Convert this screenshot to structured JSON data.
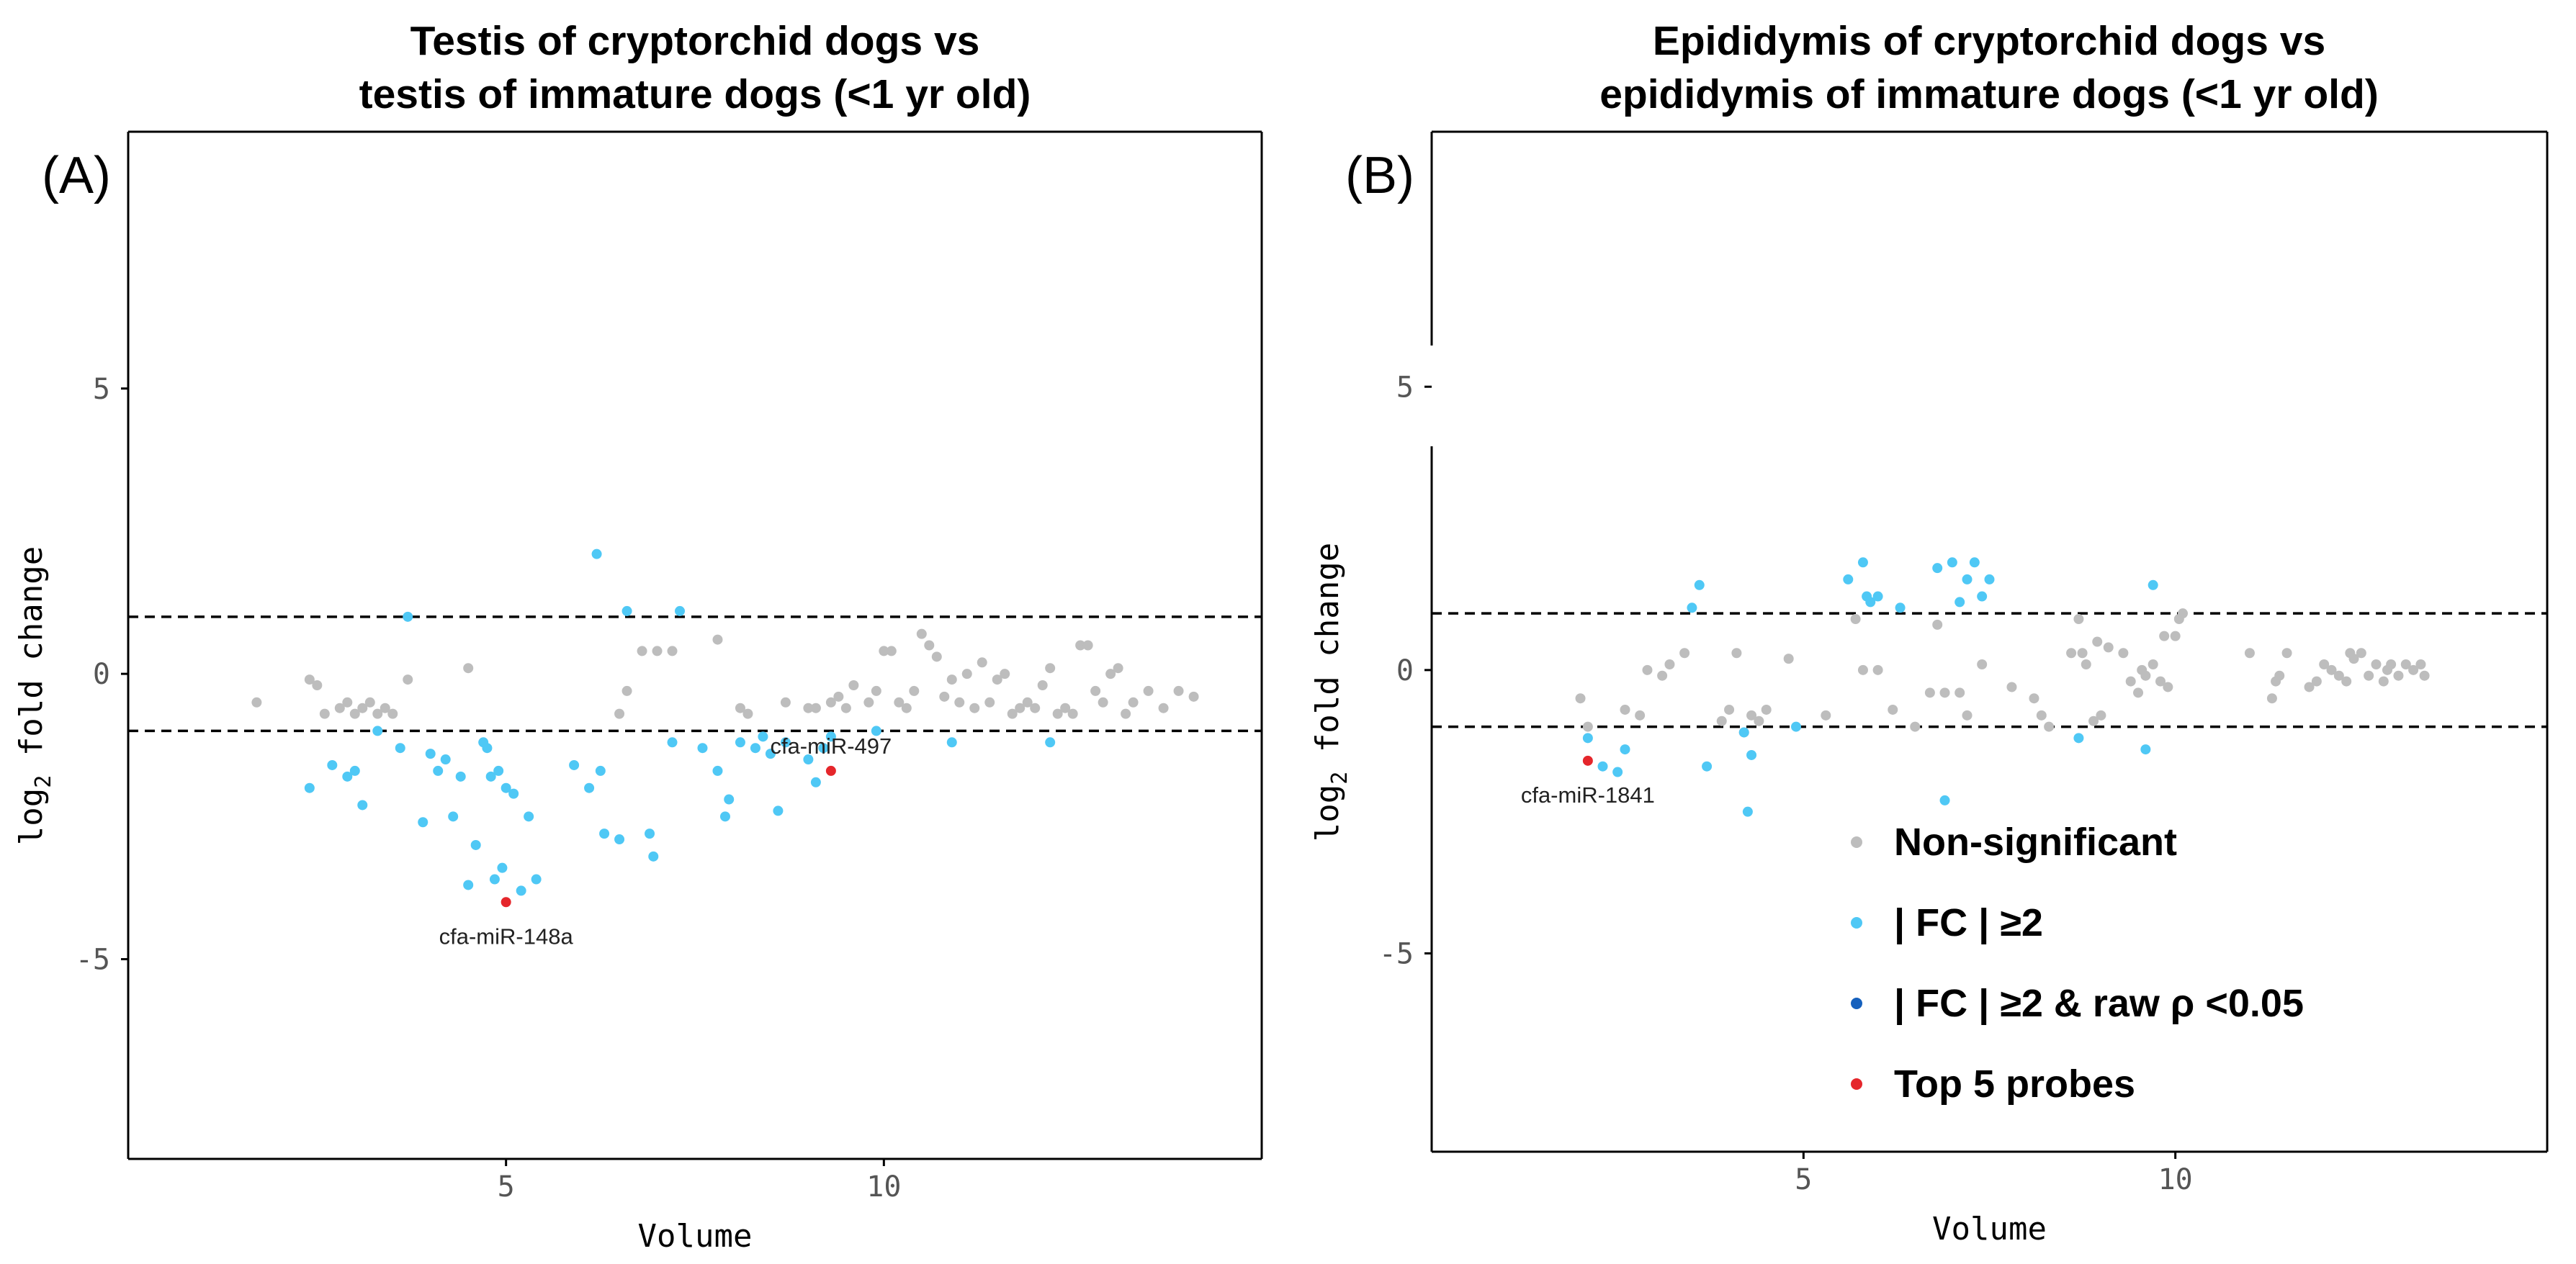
{
  "chart_data": [
    {
      "type": "scatter",
      "panel_label": "(A)",
      "title_line1": "Testis of cryptorchid dogs vs",
      "title_line2": "testis of immature dogs (<1 yr old)",
      "xlabel": "Volume",
      "ylabel_main": "log",
      "ylabel_sub": "2",
      "ylabel_rest": " fold change",
      "xlim": [
        0,
        15
      ],
      "ylim": [
        -8.5,
        9.5
      ],
      "xticks": [
        5,
        10
      ],
      "yticks": [
        5,
        0,
        -5
      ],
      "ytick_labels": [
        "5",
        "0",
        "-5"
      ],
      "hlines": [
        1,
        -1
      ],
      "series": [
        {
          "name": "Non-significant",
          "color": "#bdbdbd",
          "points": [
            [
              1.7,
              -0.5
            ],
            [
              2.4,
              -0.1
            ],
            [
              2.5,
              -0.2
            ],
            [
              2.6,
              -0.7
            ],
            [
              2.8,
              -0.6
            ],
            [
              2.9,
              -0.5
            ],
            [
              3.0,
              -0.7
            ],
            [
              3.1,
              -0.6
            ],
            [
              3.2,
              -0.5
            ],
            [
              3.3,
              -0.7
            ],
            [
              3.4,
              -0.6
            ],
            [
              3.5,
              -0.7
            ],
            [
              3.7,
              -0.1
            ],
            [
              4.5,
              0.1
            ],
            [
              6.5,
              -0.7
            ],
            [
              6.6,
              -0.3
            ],
            [
              6.8,
              0.4
            ],
            [
              7.0,
              0.4
            ],
            [
              7.2,
              0.4
            ],
            [
              7.8,
              0.6
            ],
            [
              8.1,
              -0.6
            ],
            [
              8.2,
              -0.7
            ],
            [
              8.7,
              -0.5
            ],
            [
              9.0,
              -0.6
            ],
            [
              9.1,
              -0.6
            ],
            [
              9.3,
              -0.5
            ],
            [
              9.4,
              -0.4
            ],
            [
              9.5,
              -0.6
            ],
            [
              9.6,
              -0.2
            ],
            [
              9.8,
              -0.5
            ],
            [
              9.9,
              -0.3
            ],
            [
              10.0,
              0.4
            ],
            [
              10.1,
              0.4
            ],
            [
              10.2,
              -0.5
            ],
            [
              10.3,
              -0.6
            ],
            [
              10.4,
              -0.3
            ],
            [
              10.5,
              0.7
            ],
            [
              10.6,
              0.5
            ],
            [
              10.7,
              0.3
            ],
            [
              10.8,
              -0.4
            ],
            [
              10.9,
              -0.1
            ],
            [
              11.0,
              -0.5
            ],
            [
              11.1,
              0.0
            ],
            [
              11.2,
              -0.6
            ],
            [
              11.3,
              0.2
            ],
            [
              11.4,
              -0.5
            ],
            [
              11.5,
              -0.1
            ],
            [
              11.6,
              0.0
            ],
            [
              11.7,
              -0.7
            ],
            [
              11.8,
              -0.6
            ],
            [
              11.9,
              -0.5
            ],
            [
              12.0,
              -0.6
            ],
            [
              12.1,
              -0.2
            ],
            [
              12.2,
              0.1
            ],
            [
              12.3,
              -0.7
            ],
            [
              12.4,
              -0.6
            ],
            [
              12.5,
              -0.7
            ],
            [
              12.6,
              0.5
            ],
            [
              12.7,
              0.5
            ],
            [
              12.8,
              -0.3
            ],
            [
              12.9,
              -0.5
            ],
            [
              13.0,
              0.0
            ],
            [
              13.1,
              0.1
            ],
            [
              13.2,
              -0.7
            ],
            [
              13.3,
              -0.5
            ],
            [
              13.5,
              -0.3
            ],
            [
              13.7,
              -0.6
            ],
            [
              13.9,
              -0.3
            ],
            [
              14.1,
              -0.4
            ]
          ]
        },
        {
          "name": "| FC | ≥2",
          "color": "#4fc8f5",
          "points": [
            [
              2.4,
              -2.0
            ],
            [
              2.7,
              -1.6
            ],
            [
              2.9,
              -1.8
            ],
            [
              3.0,
              -1.7
            ],
            [
              3.1,
              -2.3
            ],
            [
              3.3,
              -1.0
            ],
            [
              3.6,
              -1.3
            ],
            [
              3.7,
              1.0
            ],
            [
              3.9,
              -2.6
            ],
            [
              4.0,
              -1.4
            ],
            [
              4.1,
              -1.7
            ],
            [
              4.2,
              -1.5
            ],
            [
              4.3,
              -2.5
            ],
            [
              4.4,
              -1.8
            ],
            [
              4.5,
              -3.7
            ],
            [
              4.6,
              -3.0
            ],
            [
              4.7,
              -1.2
            ],
            [
              4.75,
              -1.3
            ],
            [
              4.8,
              -1.8
            ],
            [
              4.85,
              -3.6
            ],
            [
              4.9,
              -1.7
            ],
            [
              4.95,
              -3.4
            ],
            [
              5.0,
              -2.0
            ],
            [
              5.1,
              -2.1
            ],
            [
              5.2,
              -3.8
            ],
            [
              5.3,
              -2.5
            ],
            [
              5.4,
              -3.6
            ],
            [
              5.9,
              -1.6
            ],
            [
              6.1,
              -2.0
            ],
            [
              6.2,
              2.1
            ],
            [
              6.25,
              -1.7
            ],
            [
              6.3,
              -2.8
            ],
            [
              6.5,
              -2.9
            ],
            [
              6.6,
              1.1
            ],
            [
              6.9,
              -2.8
            ],
            [
              6.95,
              -3.2
            ],
            [
              7.3,
              1.1
            ],
            [
              7.2,
              -1.2
            ],
            [
              7.6,
              -1.3
            ],
            [
              7.8,
              -1.7
            ],
            [
              7.9,
              -2.5
            ],
            [
              7.95,
              -2.2
            ],
            [
              8.1,
              -1.2
            ],
            [
              8.3,
              -1.3
            ],
            [
              8.4,
              -1.1
            ],
            [
              8.5,
              -1.4
            ],
            [
              8.6,
              -2.4
            ],
            [
              8.7,
              -1.2
            ],
            [
              9.0,
              -1.5
            ],
            [
              9.1,
              -1.9
            ],
            [
              9.2,
              -1.3
            ],
            [
              9.3,
              -1.1
            ],
            [
              9.9,
              -1.0
            ],
            [
              10.9,
              -1.2
            ],
            [
              12.2,
              -1.2
            ]
          ]
        },
        {
          "name": "| FC | ≥2 & raw ρ <0.05",
          "color": "#1560bd",
          "points": []
        },
        {
          "name": "Top 5 probes",
          "color": "#e5262b",
          "points": [
            [
              5.0,
              -4.0
            ],
            [
              9.3,
              -1.7
            ]
          ]
        }
      ],
      "annotations": [
        {
          "text": "cfa-miR-148a",
          "x": 5.0,
          "y": -4.0,
          "placement": "below"
        },
        {
          "text": "cfa-miR-497",
          "x": 9.3,
          "y": -1.7,
          "placement": "above"
        }
      ]
    },
    {
      "type": "scatter",
      "panel_label": "(B)",
      "title_line1": "Epididymis of cryptorchid dogs vs",
      "title_line2": "epididymis of immature dogs (<1 yr old)",
      "xlabel": "Volume",
      "ylabel_main": "log",
      "ylabel_sub": "2",
      "ylabel_rest": " fold change",
      "xlim": [
        0,
        15
      ],
      "ylim": [
        -8.5,
        9.5
      ],
      "xticks": [
        5,
        10
      ],
      "yticks": [
        5,
        0,
        -5
      ],
      "ytick_labels": [
        "5",
        "0",
        "-5"
      ],
      "hlines": [
        1,
        -1
      ],
      "series": [
        {
          "name": "Non-significant",
          "color": "#bdbdbd",
          "points": [
            [
              2.0,
              -0.5
            ],
            [
              2.1,
              -1.0
            ],
            [
              2.6,
              -0.7
            ],
            [
              2.8,
              -0.8
            ],
            [
              2.9,
              0.0
            ],
            [
              3.1,
              -0.1
            ],
            [
              3.2,
              0.1
            ],
            [
              3.4,
              0.3
            ],
            [
              3.9,
              -0.9
            ],
            [
              4.0,
              -0.7
            ],
            [
              4.1,
              0.3
            ],
            [
              4.2,
              -1.1
            ],
            [
              4.3,
              -0.8
            ],
            [
              4.4,
              -0.9
            ],
            [
              4.5,
              -0.7
            ],
            [
              4.8,
              0.2
            ],
            [
              5.3,
              -0.8
            ],
            [
              5.7,
              0.9
            ],
            [
              5.8,
              0.0
            ],
            [
              6.0,
              0.0
            ],
            [
              6.2,
              -0.7
            ],
            [
              6.5,
              -1.0
            ],
            [
              6.7,
              -0.4
            ],
            [
              6.8,
              0.8
            ],
            [
              6.9,
              -0.4
            ],
            [
              7.1,
              -0.4
            ],
            [
              7.2,
              -0.8
            ],
            [
              7.4,
              0.1
            ],
            [
              7.8,
              -0.3
            ],
            [
              8.1,
              -0.5
            ],
            [
              8.2,
              -0.8
            ],
            [
              8.3,
              -1.0
            ],
            [
              8.6,
              0.3
            ],
            [
              8.7,
              0.9
            ],
            [
              8.75,
              0.3
            ],
            [
              8.8,
              0.1
            ],
            [
              8.9,
              -0.9
            ],
            [
              8.95,
              0.5
            ],
            [
              9.0,
              -0.8
            ],
            [
              9.1,
              0.4
            ],
            [
              9.3,
              0.3
            ],
            [
              9.4,
              -0.2
            ],
            [
              9.5,
              -0.4
            ],
            [
              9.55,
              0.0
            ],
            [
              9.6,
              -0.1
            ],
            [
              9.7,
              0.1
            ],
            [
              9.8,
              -0.2
            ],
            [
              9.85,
              0.6
            ],
            [
              9.9,
              -0.3
            ],
            [
              10.0,
              0.6
            ],
            [
              10.05,
              0.9
            ],
            [
              10.1,
              1.0
            ],
            [
              11.0,
              0.3
            ],
            [
              11.3,
              -0.5
            ],
            [
              11.35,
              -0.2
            ],
            [
              11.4,
              -0.1
            ],
            [
              11.5,
              0.3
            ],
            [
              11.8,
              -0.3
            ],
            [
              11.9,
              -0.2
            ],
            [
              12.0,
              0.1
            ],
            [
              12.1,
              0.0
            ],
            [
              12.2,
              -0.1
            ],
            [
              12.3,
              -0.2
            ],
            [
              12.35,
              0.3
            ],
            [
              12.4,
              0.2
            ],
            [
              12.5,
              0.3
            ],
            [
              12.6,
              -0.1
            ],
            [
              12.7,
              0.1
            ],
            [
              12.8,
              -0.2
            ],
            [
              12.85,
              0.0
            ],
            [
              12.9,
              0.1
            ],
            [
              13.0,
              -0.1
            ],
            [
              13.1,
              0.1
            ],
            [
              13.2,
              0.0
            ],
            [
              13.3,
              0.1
            ],
            [
              13.35,
              -0.1
            ]
          ]
        },
        {
          "name": "| FC | ≥2",
          "color": "#4fc8f5",
          "points": [
            [
              2.1,
              -1.2
            ],
            [
              2.3,
              -1.7
            ],
            [
              2.5,
              -1.8
            ],
            [
              2.6,
              -1.4
            ],
            [
              3.5,
              1.1
            ],
            [
              3.6,
              1.5
            ],
            [
              3.7,
              -1.7
            ],
            [
              4.2,
              -1.1
            ],
            [
              4.25,
              -2.5
            ],
            [
              4.3,
              -1.5
            ],
            [
              4.9,
              -1.0
            ],
            [
              5.6,
              1.6
            ],
            [
              5.8,
              1.9
            ],
            [
              5.85,
              1.3
            ],
            [
              5.9,
              1.2
            ],
            [
              6.0,
              1.3
            ],
            [
              6.3,
              1.1
            ],
            [
              6.8,
              1.8
            ],
            [
              6.9,
              -2.3
            ],
            [
              7.0,
              1.9
            ],
            [
              7.1,
              1.2
            ],
            [
              7.2,
              1.6
            ],
            [
              7.3,
              1.9
            ],
            [
              7.4,
              1.3
            ],
            [
              7.5,
              1.6
            ],
            [
              8.7,
              -1.2
            ],
            [
              9.6,
              -1.4
            ],
            [
              9.7,
              1.5
            ]
          ]
        },
        {
          "name": "| FC | ≥2 & raw ρ <0.05",
          "color": "#1560bd",
          "points": []
        },
        {
          "name": "Top 5 probes",
          "color": "#e5262b",
          "points": [
            [
              2.1,
              -1.6
            ]
          ]
        }
      ],
      "annotations": [
        {
          "text": "cfa-miR-1841",
          "x": 2.1,
          "y": -1.6,
          "placement": "below"
        }
      ],
      "legend": {
        "placement": "bottom-right",
        "entries": [
          {
            "label": "Non-significant",
            "color": "#bdbdbd"
          },
          {
            "label": "| FC | ≥2",
            "color": "#4fc8f5"
          },
          {
            "label": "| FC | ≥2 & raw ρ <0.05",
            "color": "#1560bd"
          },
          {
            "label": "Top 5 probes",
            "color": "#e5262b"
          }
        ]
      }
    }
  ]
}
